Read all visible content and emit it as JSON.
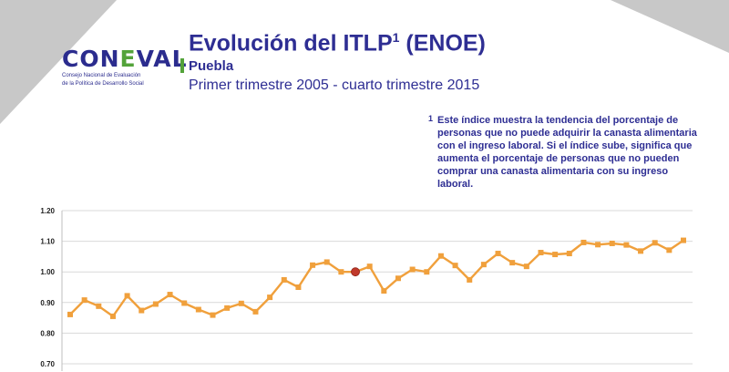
{
  "logo": {
    "text": "CONEVAL",
    "tagline_1": "Consejo Nacional de Evaluación",
    "tagline_2": "de la Política de Desarrollo Social"
  },
  "header": {
    "title": "Evolución del ITLP",
    "title_sup": "1",
    "title_suffix": " (ENOE)",
    "state": "Puebla",
    "period": "Primer trimestre 2005 - cuarto trimestre 2015"
  },
  "footnote": {
    "marker": "1",
    "text": "Este índice muestra la tendencia del porcentaje de personas que no puede adquirir la canasta alimentaria con el ingreso laboral. Si el índice sube, significa que aumenta el porcentaje de personas que no pueden comprar una canasta alimentaria con su ingreso laboral."
  },
  "colors": {
    "brand_blue": "#2e2e93",
    "brand_green": "#53a33a",
    "series_line": "#f0a03c",
    "highlight_point": "#c0392b"
  },
  "chart_data": {
    "type": "line",
    "title": "",
    "xlabel": "",
    "ylabel": "",
    "ylim": [
      0.7,
      1.2
    ],
    "y_ticks": [
      "1.20",
      "1.10",
      "1.00",
      "0.90",
      "0.80",
      "0.70"
    ],
    "grid": true,
    "highlight_index": 20,
    "series": [
      {
        "values": [
          0.861,
          0.908,
          0.888,
          0.855,
          0.922,
          0.874,
          0.895,
          0.926,
          0.898,
          0.877,
          0.859,
          0.882,
          0.897,
          0.87,
          0.917,
          0.974,
          0.95,
          1.022,
          1.032,
          1.0,
          1.0,
          1.018,
          0.938,
          0.979,
          1.008,
          1.0,
          1.052,
          1.021,
          0.974,
          1.024,
          1.06,
          1.03,
          1.018,
          1.063,
          1.057,
          1.06,
          1.096,
          1.089,
          1.093,
          1.088,
          1.068,
          1.095,
          1.071,
          1.103
        ]
      }
    ]
  }
}
